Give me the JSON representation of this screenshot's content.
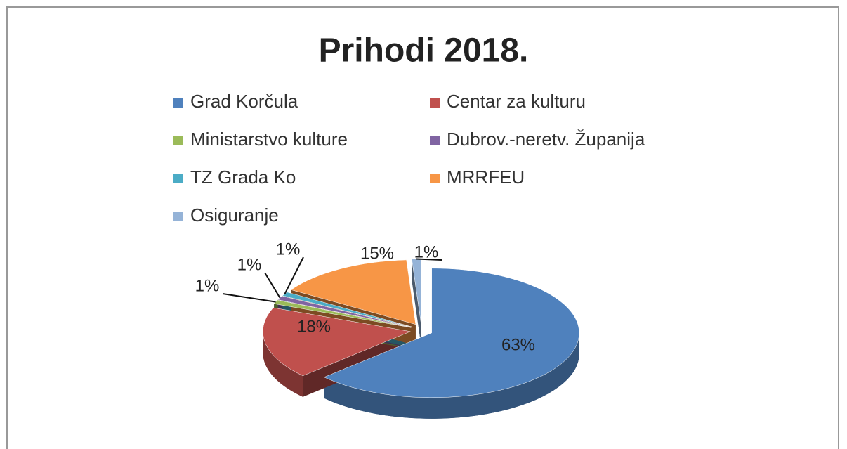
{
  "chart_data": {
    "type": "pie",
    "title": "Prihodi 2018.",
    "categories": [
      "Grad Korčula",
      "Centar za kulturu",
      "Ministarstvo kulture",
      "Dubrov.-neretv. Županija",
      "TZ Grada Ko",
      "MRRFEU",
      "Osiguranje"
    ],
    "values": [
      63,
      18,
      1,
      1,
      1,
      15,
      1
    ],
    "value_labels": [
      "63%",
      "18%",
      "1%",
      "1%",
      "1%",
      "15%",
      "1%"
    ],
    "colors": [
      "#4f81bd",
      "#c0504d",
      "#9bbb59",
      "#8064a2",
      "#4bacc6",
      "#f79646",
      "#95b3d7"
    ],
    "legend": "top"
  }
}
